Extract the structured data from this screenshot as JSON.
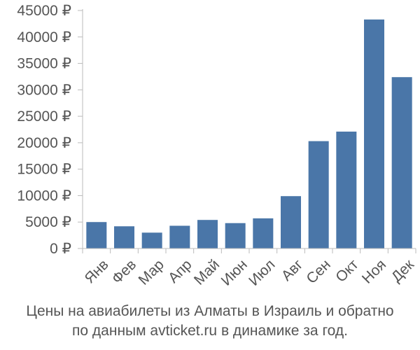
{
  "chart_data": {
    "type": "bar",
    "categories": [
      "Янв",
      "Фев",
      "Мар",
      "Апр",
      "Май",
      "Июн",
      "Июл",
      "Авг",
      "Сен",
      "Окт",
      "Ноя",
      "Дек"
    ],
    "values": [
      5000,
      4200,
      3000,
      4300,
      5400,
      4800,
      5700,
      9900,
      20300,
      22100,
      43300,
      32400
    ],
    "yticks": [
      "0 ₽",
      "5000 ₽",
      "10000 ₽",
      "15000 ₽",
      "20000 ₽",
      "25000 ₽",
      "30000 ₽",
      "35000 ₽",
      "40000 ₽",
      "45000 ₽"
    ],
    "ylim": [
      0,
      45000
    ],
    "grid": false,
    "legend": "none",
    "bar_color": "#4a76a8",
    "axis_color": "#bbbbbb",
    "caption": [
      "Цены на авиабилеты из Алматы в Израиль и обратно",
      "по данным avticket.ru в динамике за год."
    ]
  }
}
